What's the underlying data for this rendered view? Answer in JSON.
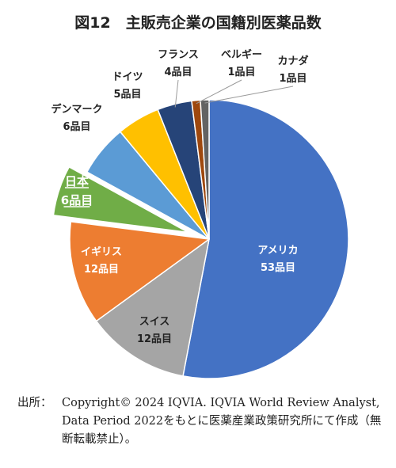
{
  "chart_data": {
    "type": "pie",
    "title": "図12　主販売企業の国籍別医薬品数",
    "unit": "品目",
    "slices": [
      {
        "name": "アメリカ",
        "value": 53,
        "value_label": "53品目",
        "color": "#4472c4"
      },
      {
        "name": "スイス",
        "value": 12,
        "value_label": "12品目",
        "color": "#a5a5a5"
      },
      {
        "name": "イギリス",
        "value": 12,
        "value_label": "12品目",
        "color": "#ed7d31"
      },
      {
        "name": "日本",
        "value": 6,
        "value_label": "6品目",
        "color": "#70ad47",
        "exploded": true,
        "highlighted": true
      },
      {
        "name": "デンマーク",
        "value": 6,
        "value_label": "6品目",
        "color": "#5b9bd5"
      },
      {
        "name": "ドイツ",
        "value": 5,
        "value_label": "5品目",
        "color": "#ffc000"
      },
      {
        "name": "フランス",
        "value": 4,
        "value_label": "4品目",
        "color": "#264478"
      },
      {
        "name": "ベルギー",
        "value": 1,
        "value_label": "1品目",
        "color": "#9e480e"
      },
      {
        "name": "カナダ",
        "value": 1,
        "value_label": "1品目",
        "color": "#636363"
      }
    ]
  },
  "source": {
    "prefix": "出所：",
    "text": "Copyright© 2024 IQVIA. IQVIA World Review Analyst, Data Period 2022をもとに医薬産業政策研究所にて作成（無断転載禁止）。"
  }
}
